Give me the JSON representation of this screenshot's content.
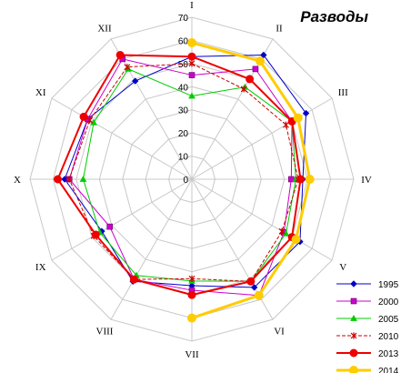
{
  "chart_data": {
    "type": "radar",
    "title": "Разводы",
    "categories": [
      "I",
      "II",
      "III",
      "IV",
      "V",
      "VI",
      "VII",
      "VIII",
      "IX",
      "X",
      "XI",
      "XII"
    ],
    "rlim": [
      0,
      70
    ],
    "ticks": [
      0,
      10,
      20,
      30,
      40,
      50,
      60,
      70
    ],
    "grid": true,
    "legend": "bottom-right",
    "series": [
      {
        "name": "1995",
        "color": "#0000cc",
        "marker": "diamond",
        "dash": false,
        "width": 1,
        "values": [
          53,
          62,
          57,
          48,
          54,
          54,
          46,
          51,
          45,
          55,
          52,
          49
        ]
      },
      {
        "name": "2000",
        "color": "#cc00cc",
        "marker": "square",
        "dash": false,
        "width": 1,
        "values": [
          45,
          55,
          50,
          43,
          46,
          58,
          48,
          50,
          41,
          53,
          52,
          60
        ]
      },
      {
        "name": "2005",
        "color": "#00cc00",
        "marker": "triangle",
        "dash": false,
        "width": 1,
        "values": [
          36,
          46,
          50,
          45,
          47,
          51,
          44,
          48,
          46,
          47,
          49,
          55
        ]
      },
      {
        "name": "2010",
        "color": "#cc0000",
        "marker": "star",
        "dash": true,
        "width": 1,
        "values": [
          50,
          45,
          47,
          46,
          45,
          51,
          43,
          50,
          49,
          53,
          51,
          56
        ]
      },
      {
        "name": "2013",
        "color": "#ee0000",
        "marker": "circle",
        "dash": false,
        "width": 2,
        "values": [
          53,
          50,
          50,
          47,
          50,
          51,
          50,
          50,
          48,
          58,
          54,
          62
        ]
      },
      {
        "name": "2014",
        "color": "#ffcc00",
        "marker": "circle",
        "dash": false,
        "width": 3,
        "values": [
          59,
          59,
          53,
          51,
          52,
          58,
          60,
          null,
          null,
          null,
          null,
          null
        ]
      }
    ]
  }
}
